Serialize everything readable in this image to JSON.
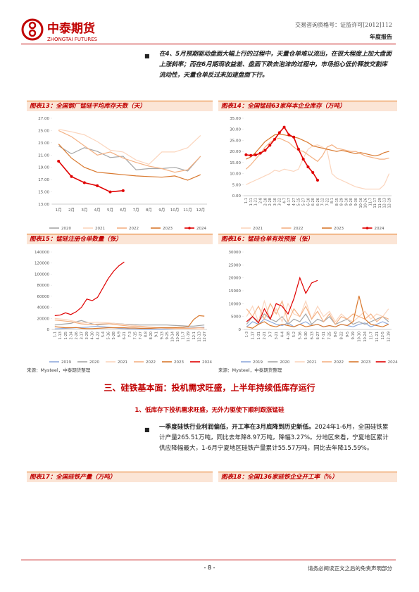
{
  "header": {
    "logo_cn": "中泰期货",
    "logo_en": "ZHONGTAI FUTURES",
    "license": "交易咨询资格号：证监许可[2012]112",
    "report_type": "年度报告"
  },
  "bullet_1": "在4、5月预期驱动盘面大幅上行的过程中，天量仓单难以流出，在很大程度上加大盘面上涨斜率；而在6月期现收益差、盘面下跌去泡沫的过程中，市场担心低价释放交割库流动性，天量仓单反过来加速盘面下行。",
  "source": "来源：Mysteel，中泰期货整理",
  "section_title": "三、硅铁基本面：投机需求旺盛，上半年持续低库存运行",
  "subsection_title": "1、低库存下投机需求旺盛，无外力驱使下顺利跟涨锰硅",
  "bullet_2": {
    "bold": "一季度硅铁行业利润偏低，开工率在3月底降到历史新低。",
    "text": "2024年1-6月，全国硅铁累计产量265.51万吨，同比去年降8.97万吨，降幅3.27%。分地区来看，宁夏地区累计供应降幅最大，1-6月宁夏地区硅铁产量累计55.57万吨，同比去年降15.59%。"
  },
  "figure_17_title": "图表17：全国硅铁产量（万吨）",
  "figure_18_title": "图表18：全国136家硅铁企业开工率（%）",
  "footer": {
    "page": "- 8 -",
    "disclaimer": "请务必阅读正文之后的免责声明部分"
  },
  "chart_data": [
    {
      "type": "line",
      "title": "图表13：全国钢厂锰硅平均库存天数（天）",
      "categories": [
        "1月",
        "2月",
        "3月",
        "4月",
        "5月",
        "6月",
        "7月",
        "8月",
        "9月",
        "10月",
        "11月",
        "12月"
      ],
      "ylim": [
        13,
        27
      ],
      "yticks": [
        {
          "value": 13,
          "label": "13.00"
        },
        {
          "value": 15,
          "label": "15.00"
        },
        {
          "value": 17,
          "label": "17.00"
        },
        {
          "value": 19,
          "label": "19.00"
        },
        {
          "value": 21,
          "label": "21.00"
        },
        {
          "value": 23,
          "label": "23.00"
        },
        {
          "value": 25,
          "label": "25.00"
        },
        {
          "value": 27,
          "label": "27.00"
        }
      ],
      "xlabels_vertical": false,
      "series": [
        {
          "name": "2020",
          "color": "#a6a6a6",
          "values": [
            22.5,
            21.2,
            22.2,
            21.6,
            20.6,
            20.8,
            18.6,
            18.8,
            18.8,
            19.0,
            18.4,
            20.8
          ]
        },
        {
          "name": "2021",
          "color": "#fbd5bd",
          "values": [
            25.2,
            24.8,
            24.3,
            23.2,
            21.8,
            21.5,
            20.2,
            19.5,
            21.5,
            21.5,
            22.2,
            24.2
          ]
        },
        {
          "name": "2022",
          "color": "#f4b183",
          "values": [
            25.0,
            24.0,
            22.5,
            21.0,
            21.5,
            20.5,
            19.8,
            19.2,
            18.8,
            18.2,
            18.6,
            20.8
          ]
        },
        {
          "name": "2023",
          "color": "#d9782d",
          "values": [
            22.8,
            20.5,
            19.0,
            18.2,
            18.0,
            17.8,
            17.6,
            17.5,
            17.4,
            17.6,
            16.9,
            17.8
          ]
        },
        {
          "name": "2024",
          "color": "#e00000",
          "markers": true,
          "values": [
            20.0,
            17.5,
            16.5,
            16.0,
            15.0,
            15.2,
            null,
            null,
            null,
            null,
            null,
            null
          ]
        }
      ]
    },
    {
      "type": "line",
      "title": "图表14：全国锰硅63家样本企业库存（万吨）",
      "categories": [
        "1-1",
        "1-11",
        "1-21",
        "2-8",
        "2-18",
        "2-28",
        "3-10",
        "3-22",
        "4-7",
        "4-17",
        "4-27",
        "5-15",
        "5-27",
        "6-10",
        "6-20",
        "6-26",
        "7-12",
        "7-22",
        "8-1",
        "8-15",
        "8-29",
        "9-10",
        "9-20",
        "9-30",
        "10-16",
        "10-26",
        "11-7",
        "11-17",
        "11-29",
        "12-13",
        "12-19"
      ],
      "ylim": [
        0,
        35
      ],
      "yticks": [
        {
          "value": 0,
          "label": "0.00"
        },
        {
          "value": 5,
          "label": "5.00"
        },
        {
          "value": 10,
          "label": "10.00"
        },
        {
          "value": 15,
          "label": "15.00"
        },
        {
          "value": 20,
          "label": "20.00"
        },
        {
          "value": 25,
          "label": "25.00"
        },
        {
          "value": 30,
          "label": "30.00"
        },
        {
          "value": 35,
          "label": "35.00"
        }
      ],
      "xlabels_vertical": true,
      "series": [
        {
          "name": "2021",
          "color": "#fbd5bd",
          "values": [
            5,
            6,
            7,
            8,
            9,
            10,
            11.5,
            11,
            12,
            11.5,
            11,
            12,
            17,
            21,
            22.5,
            23,
            22,
            20.5,
            10,
            8,
            7,
            6,
            5,
            4,
            3.5,
            3,
            3,
            3,
            3,
            5,
            10
          ]
        },
        {
          "name": "2022",
          "color": "#f4b183",
          "values": [
            12,
            14,
            16.5,
            19,
            22,
            24,
            25.5,
            26,
            25,
            24,
            22,
            20.5,
            20,
            18.5,
            17,
            15.5,
            18,
            22,
            23,
            21.5,
            21,
            20.5,
            20,
            20,
            19,
            18,
            17.5,
            17,
            16.5,
            16.5,
            17
          ]
        },
        {
          "name": "2023",
          "color": "#d9782d",
          "values": [
            16.5,
            17.5,
            19.5,
            22,
            24.5,
            26,
            27.5,
            27.8,
            27.5,
            27,
            26.5,
            26,
            25,
            24,
            22.5,
            22,
            21.5,
            21,
            20.5,
            20,
            20.5,
            20,
            19.5,
            19,
            19.5,
            19,
            18.5,
            18,
            18.5,
            19.5,
            20
          ]
        },
        {
          "name": "2024",
          "color": "#e00000",
          "markers": true,
          "values": [
            18.5,
            18.2,
            18.4,
            19.2,
            20.5,
            22.8,
            25.5,
            28.5,
            31,
            27.5,
            26.5,
            21,
            16.5,
            13,
            10.5,
            7,
            null,
            null,
            null,
            null,
            null,
            null,
            null,
            null,
            null,
            null,
            null,
            null,
            null,
            null,
            null
          ]
        }
      ]
    },
    {
      "type": "line",
      "title": "图表15：锰硅注册仓单数量（张）",
      "categories": [
        "1-1",
        "1-13",
        "1-25",
        "2-14",
        "2-26",
        "3-17",
        "3-29",
        "4-10",
        "4-22",
        "5-4",
        "5-16",
        "5-28",
        "6-9",
        "6-21",
        "7-3",
        "7-15",
        "7-27",
        "8-8",
        "8-20",
        "9-1",
        "9-13",
        "9-25",
        "10-14",
        "10-26",
        "11-7",
        "11-19",
        "12-1",
        "12-13",
        "12-27"
      ],
      "ylim": [
        0,
        140000
      ],
      "yticks": [
        0,
        20000,
        40000,
        60000,
        80000,
        100000,
        120000,
        140000
      ],
      "xlabels_vertical": true,
      "series": [
        {
          "name": "2019",
          "color": "#8faadc",
          "values": [
            1000,
            1500,
            2000,
            2500,
            3000,
            3500,
            4000,
            5000,
            6000,
            5000,
            4000,
            3000,
            2000,
            1500,
            1000,
            800,
            600,
            500,
            500,
            500,
            500,
            800,
            1000,
            1500,
            2000,
            2500,
            3000,
            3500,
            4000
          ]
        },
        {
          "name": "2020",
          "color": "#a6a6a6",
          "values": [
            8000,
            9000,
            10000,
            11000,
            14000,
            16000,
            13000,
            10000,
            8000,
            9000,
            10000,
            11000,
            10500,
            9500,
            9000,
            8500,
            8000,
            8000,
            8000,
            8000,
            8000,
            8000,
            7500,
            7000,
            6500,
            6000,
            6000,
            7000,
            8000
          ]
        },
        {
          "name": "2021",
          "color": "#fbd5bd",
          "values": [
            20000,
            19000,
            18000,
            16000,
            14000,
            12000,
            12000,
            12500,
            13000,
            12500,
            12000,
            11000,
            10000,
            9000,
            8000,
            7000,
            6000,
            5000,
            4000,
            3000,
            2500,
            2000,
            1500,
            1000,
            1000,
            1000,
            1000,
            500,
            500
          ]
        },
        {
          "name": "2022",
          "color": "#f4b183",
          "values": [
            17000,
            16000,
            15000,
            14000,
            12000,
            10000,
            9000,
            9000,
            9500,
            10000,
            10500,
            9000,
            8000,
            7000,
            6000,
            5500,
            5000,
            4500,
            4000,
            3500,
            3000,
            2500,
            2500,
            2000,
            2000,
            2000,
            2500,
            3000,
            2500
          ]
        },
        {
          "name": "2023",
          "color": "#d9782d",
          "values": [
            5000,
            4000,
            3000,
            3000,
            3500,
            2000,
            1500,
            1500,
            2000,
            2500,
            3000,
            3000,
            3000,
            3000,
            2500,
            2500,
            2000,
            2000,
            2000,
            2500,
            3000,
            3000,
            3000,
            3500,
            4000,
            5000,
            18000,
            25000,
            24000
          ]
        },
        {
          "name": "2024",
          "color": "#e00000",
          "values": [
            25000,
            26000,
            30000,
            27000,
            32000,
            40000,
            55000,
            52000,
            58000,
            75000,
            92000,
            105000,
            115000,
            122000,
            null,
            null,
            null,
            null,
            null,
            null,
            null,
            null,
            null,
            null,
            null,
            null,
            null,
            null,
            null
          ]
        }
      ]
    },
    {
      "type": "line",
      "title": "图表16：锰硅仓单有效预报（张）",
      "categories": [
        "1-3",
        "1-17",
        "1-31",
        "2-21",
        "3-7",
        "3-21",
        "4-4",
        "4-18",
        "5-2",
        "5-16",
        "5-30",
        "6-13",
        "6-27",
        "7-11",
        "7-25",
        "8-8",
        "8-22",
        "9-5",
        "9-19",
        "10-10",
        "10-24",
        "11-7",
        "11-21",
        "12-5",
        "12-19"
      ],
      "ylim": [
        0,
        30000
      ],
      "yticks": [
        0,
        5000,
        10000,
        15000,
        20000,
        25000,
        30000
      ],
      "xlabels_vertical": true,
      "series": [
        {
          "name": "2019",
          "color": "#8faadc",
          "values": [
            1000,
            3000,
            2000,
            4000,
            3000,
            2000,
            1500,
            2500,
            1000,
            2000,
            3000,
            1500,
            2000,
            1000,
            1500,
            1000,
            2000,
            1500,
            1000,
            2000,
            2500,
            1000,
            2000,
            3000,
            2000
          ]
        },
        {
          "name": "2020",
          "color": "#a6a6a6",
          "values": [
            2000,
            5000,
            3000,
            6000,
            4000,
            3000,
            5000,
            2000,
            4000,
            3000,
            6000,
            2000,
            4000,
            3000,
            5000,
            2000,
            3000,
            4000,
            2000,
            3000,
            2000,
            3000,
            4000,
            5000,
            3000
          ]
        },
        {
          "name": "2021",
          "color": "#fbd5bd",
          "values": [
            5000,
            9000,
            3000,
            11000,
            4000,
            8000,
            3000,
            10000,
            6000,
            5000,
            11000,
            4000,
            9000,
            5000,
            7000,
            3000,
            6000,
            4000,
            3000,
            5000,
            7000,
            4000,
            6000,
            5000,
            8000
          ]
        },
        {
          "name": "2022",
          "color": "#f4b183",
          "values": [
            8000,
            5000,
            9000,
            4000,
            10000,
            6000,
            11000,
            3000,
            8000,
            5000,
            9000,
            4000,
            7000,
            3000,
            6000,
            2000,
            5000,
            4000,
            6000,
            5000,
            4000,
            6000,
            3000,
            5000,
            4000
          ]
        },
        {
          "name": "2023",
          "color": "#d9782d",
          "values": [
            1000,
            500,
            2000,
            3000,
            1500,
            1000,
            2000,
            1500,
            1000,
            2000,
            1000,
            1500,
            2000,
            1000,
            1500,
            1000,
            2000,
            1500,
            3000,
            13000,
            4000,
            2000,
            1500,
            1000,
            2000
          ]
        },
        {
          "name": "2024",
          "color": "#e00000",
          "values": [
            3000,
            5000,
            2500,
            8000,
            4000,
            10000,
            9000,
            6000,
            12000,
            20000,
            14000,
            18000,
            19000,
            null,
            null,
            null,
            null,
            null,
            null,
            null,
            null,
            null,
            null,
            null,
            null
          ]
        }
      ]
    }
  ]
}
